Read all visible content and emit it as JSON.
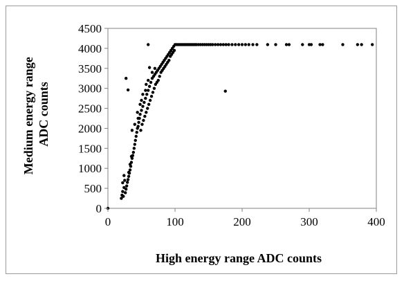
{
  "chart_data": {
    "type": "scatter",
    "title": "",
    "xlabel": "High energy range   ADC counts",
    "ylabel_lines": [
      "Medium energy range",
      "ADC counts"
    ],
    "xlim": [
      0,
      400
    ],
    "ylim": [
      0,
      4500
    ],
    "x_ticks": [
      0,
      100,
      200,
      300,
      400
    ],
    "y_ticks": [
      0,
      500,
      1000,
      1500,
      2000,
      2500,
      3000,
      3500,
      4000,
      4500
    ],
    "grid": false,
    "legend": "none",
    "marker_color": "#000000",
    "series": [
      {
        "points": [
          [
            0,
            0
          ],
          [
            20,
            250
          ],
          [
            21,
            330
          ],
          [
            22,
            420
          ],
          [
            23,
            300
          ],
          [
            24,
            520
          ],
          [
            22,
            640
          ],
          [
            25,
            700
          ],
          [
            24,
            820
          ],
          [
            26,
            390
          ],
          [
            27,
            480
          ],
          [
            28,
            560
          ],
          [
            29,
            650
          ],
          [
            30,
            720
          ],
          [
            31,
            800
          ],
          [
            32,
            880
          ],
          [
            33,
            960
          ],
          [
            34,
            1050
          ],
          [
            35,
            1150
          ],
          [
            36,
            1250
          ],
          [
            37,
            1320
          ],
          [
            38,
            1400
          ],
          [
            35,
            1300
          ],
          [
            33,
            1100
          ],
          [
            31,
            900
          ],
          [
            39,
            1500
          ],
          [
            40,
            1600
          ],
          [
            41,
            1700
          ],
          [
            42,
            1800
          ],
          [
            43,
            1900
          ],
          [
            44,
            2000
          ],
          [
            45,
            2050
          ],
          [
            46,
            2150
          ],
          [
            47,
            2250
          ],
          [
            48,
            2350
          ],
          [
            49,
            1950
          ],
          [
            50,
            2450
          ],
          [
            51,
            2100
          ],
          [
            52,
            2550
          ],
          [
            53,
            2200
          ],
          [
            54,
            2650
          ],
          [
            55,
            2300
          ],
          [
            56,
            2750
          ],
          [
            57,
            2400
          ],
          [
            58,
            2850
          ],
          [
            59,
            2500
          ],
          [
            60,
            2950
          ],
          [
            61,
            2600
          ],
          [
            62,
            3050
          ],
          [
            63,
            2700
          ],
          [
            64,
            3150
          ],
          [
            65,
            2800
          ],
          [
            66,
            3250
          ],
          [
            67,
            2900
          ],
          [
            68,
            3300
          ],
          [
            69,
            3000
          ],
          [
            70,
            3350
          ],
          [
            71,
            3100
          ],
          [
            72,
            3400
          ],
          [
            73,
            3150
          ],
          [
            74,
            3450
          ],
          [
            75,
            3200
          ],
          [
            76,
            3500
          ],
          [
            77,
            3300
          ],
          [
            78,
            3550
          ],
          [
            79,
            3400
          ],
          [
            80,
            3600
          ],
          [
            81,
            3450
          ],
          [
            82,
            3650
          ],
          [
            83,
            3500
          ],
          [
            84,
            3700
          ],
          [
            85,
            3550
          ],
          [
            86,
            3750
          ],
          [
            87,
            3600
          ],
          [
            88,
            3800
          ],
          [
            89,
            3650
          ],
          [
            90,
            3850
          ],
          [
            91,
            3700
          ],
          [
            92,
            3900
          ],
          [
            93,
            3800
          ],
          [
            94,
            3950
          ],
          [
            95,
            3850
          ],
          [
            96,
            4000
          ],
          [
            97,
            3900
          ],
          [
            98,
            4050
          ],
          [
            99,
            3950
          ],
          [
            100,
            4095
          ],
          [
            102,
            4095
          ],
          [
            104,
            4095
          ],
          [
            106,
            4095
          ],
          [
            108,
            4095
          ],
          [
            110,
            4095
          ],
          [
            112,
            4095
          ],
          [
            114,
            4095
          ],
          [
            116,
            4095
          ],
          [
            118,
            4095
          ],
          [
            120,
            4095
          ],
          [
            122,
            4095
          ],
          [
            124,
            4095
          ],
          [
            126,
            4095
          ],
          [
            128,
            4095
          ],
          [
            130,
            4095
          ],
          [
            132,
            4095
          ],
          [
            135,
            4095
          ],
          [
            138,
            4095
          ],
          [
            141,
            4095
          ],
          [
            144,
            4095
          ],
          [
            147,
            4095
          ],
          [
            150,
            4095
          ],
          [
            153,
            4095
          ],
          [
            156,
            4095
          ],
          [
            160,
            4095
          ],
          [
            164,
            4095
          ],
          [
            168,
            4095
          ],
          [
            172,
            4095
          ],
          [
            176,
            4095
          ],
          [
            180,
            4095
          ],
          [
            185,
            4095
          ],
          [
            190,
            4095
          ],
          [
            195,
            4095
          ],
          [
            200,
            4095
          ],
          [
            205,
            4095
          ],
          [
            210,
            4095
          ],
          [
            216,
            4095
          ],
          [
            222,
            4095
          ],
          [
            238,
            4095
          ],
          [
            250,
            4095
          ],
          [
            266,
            4095
          ],
          [
            270,
            4095
          ],
          [
            290,
            4095
          ],
          [
            300,
            4095
          ],
          [
            303,
            4095
          ],
          [
            316,
            4095
          ],
          [
            320,
            4095
          ],
          [
            350,
            4095
          ],
          [
            372,
            4095
          ],
          [
            378,
            4095
          ],
          [
            394,
            4095
          ],
          [
            60,
            4095
          ],
          [
            27,
            3250
          ],
          [
            30,
            2960
          ],
          [
            175,
            2930
          ],
          [
            62,
            3520
          ],
          [
            60,
            3200
          ],
          [
            48,
            2600
          ],
          [
            52,
            2850
          ],
          [
            36,
            1950
          ],
          [
            40,
            2100
          ],
          [
            45,
            2250
          ],
          [
            57,
            3100
          ],
          [
            66,
            3400
          ],
          [
            70,
            3500
          ],
          [
            56,
            2950
          ],
          [
            44,
            2400
          ],
          [
            50,
            2700
          ]
        ]
      }
    ]
  }
}
